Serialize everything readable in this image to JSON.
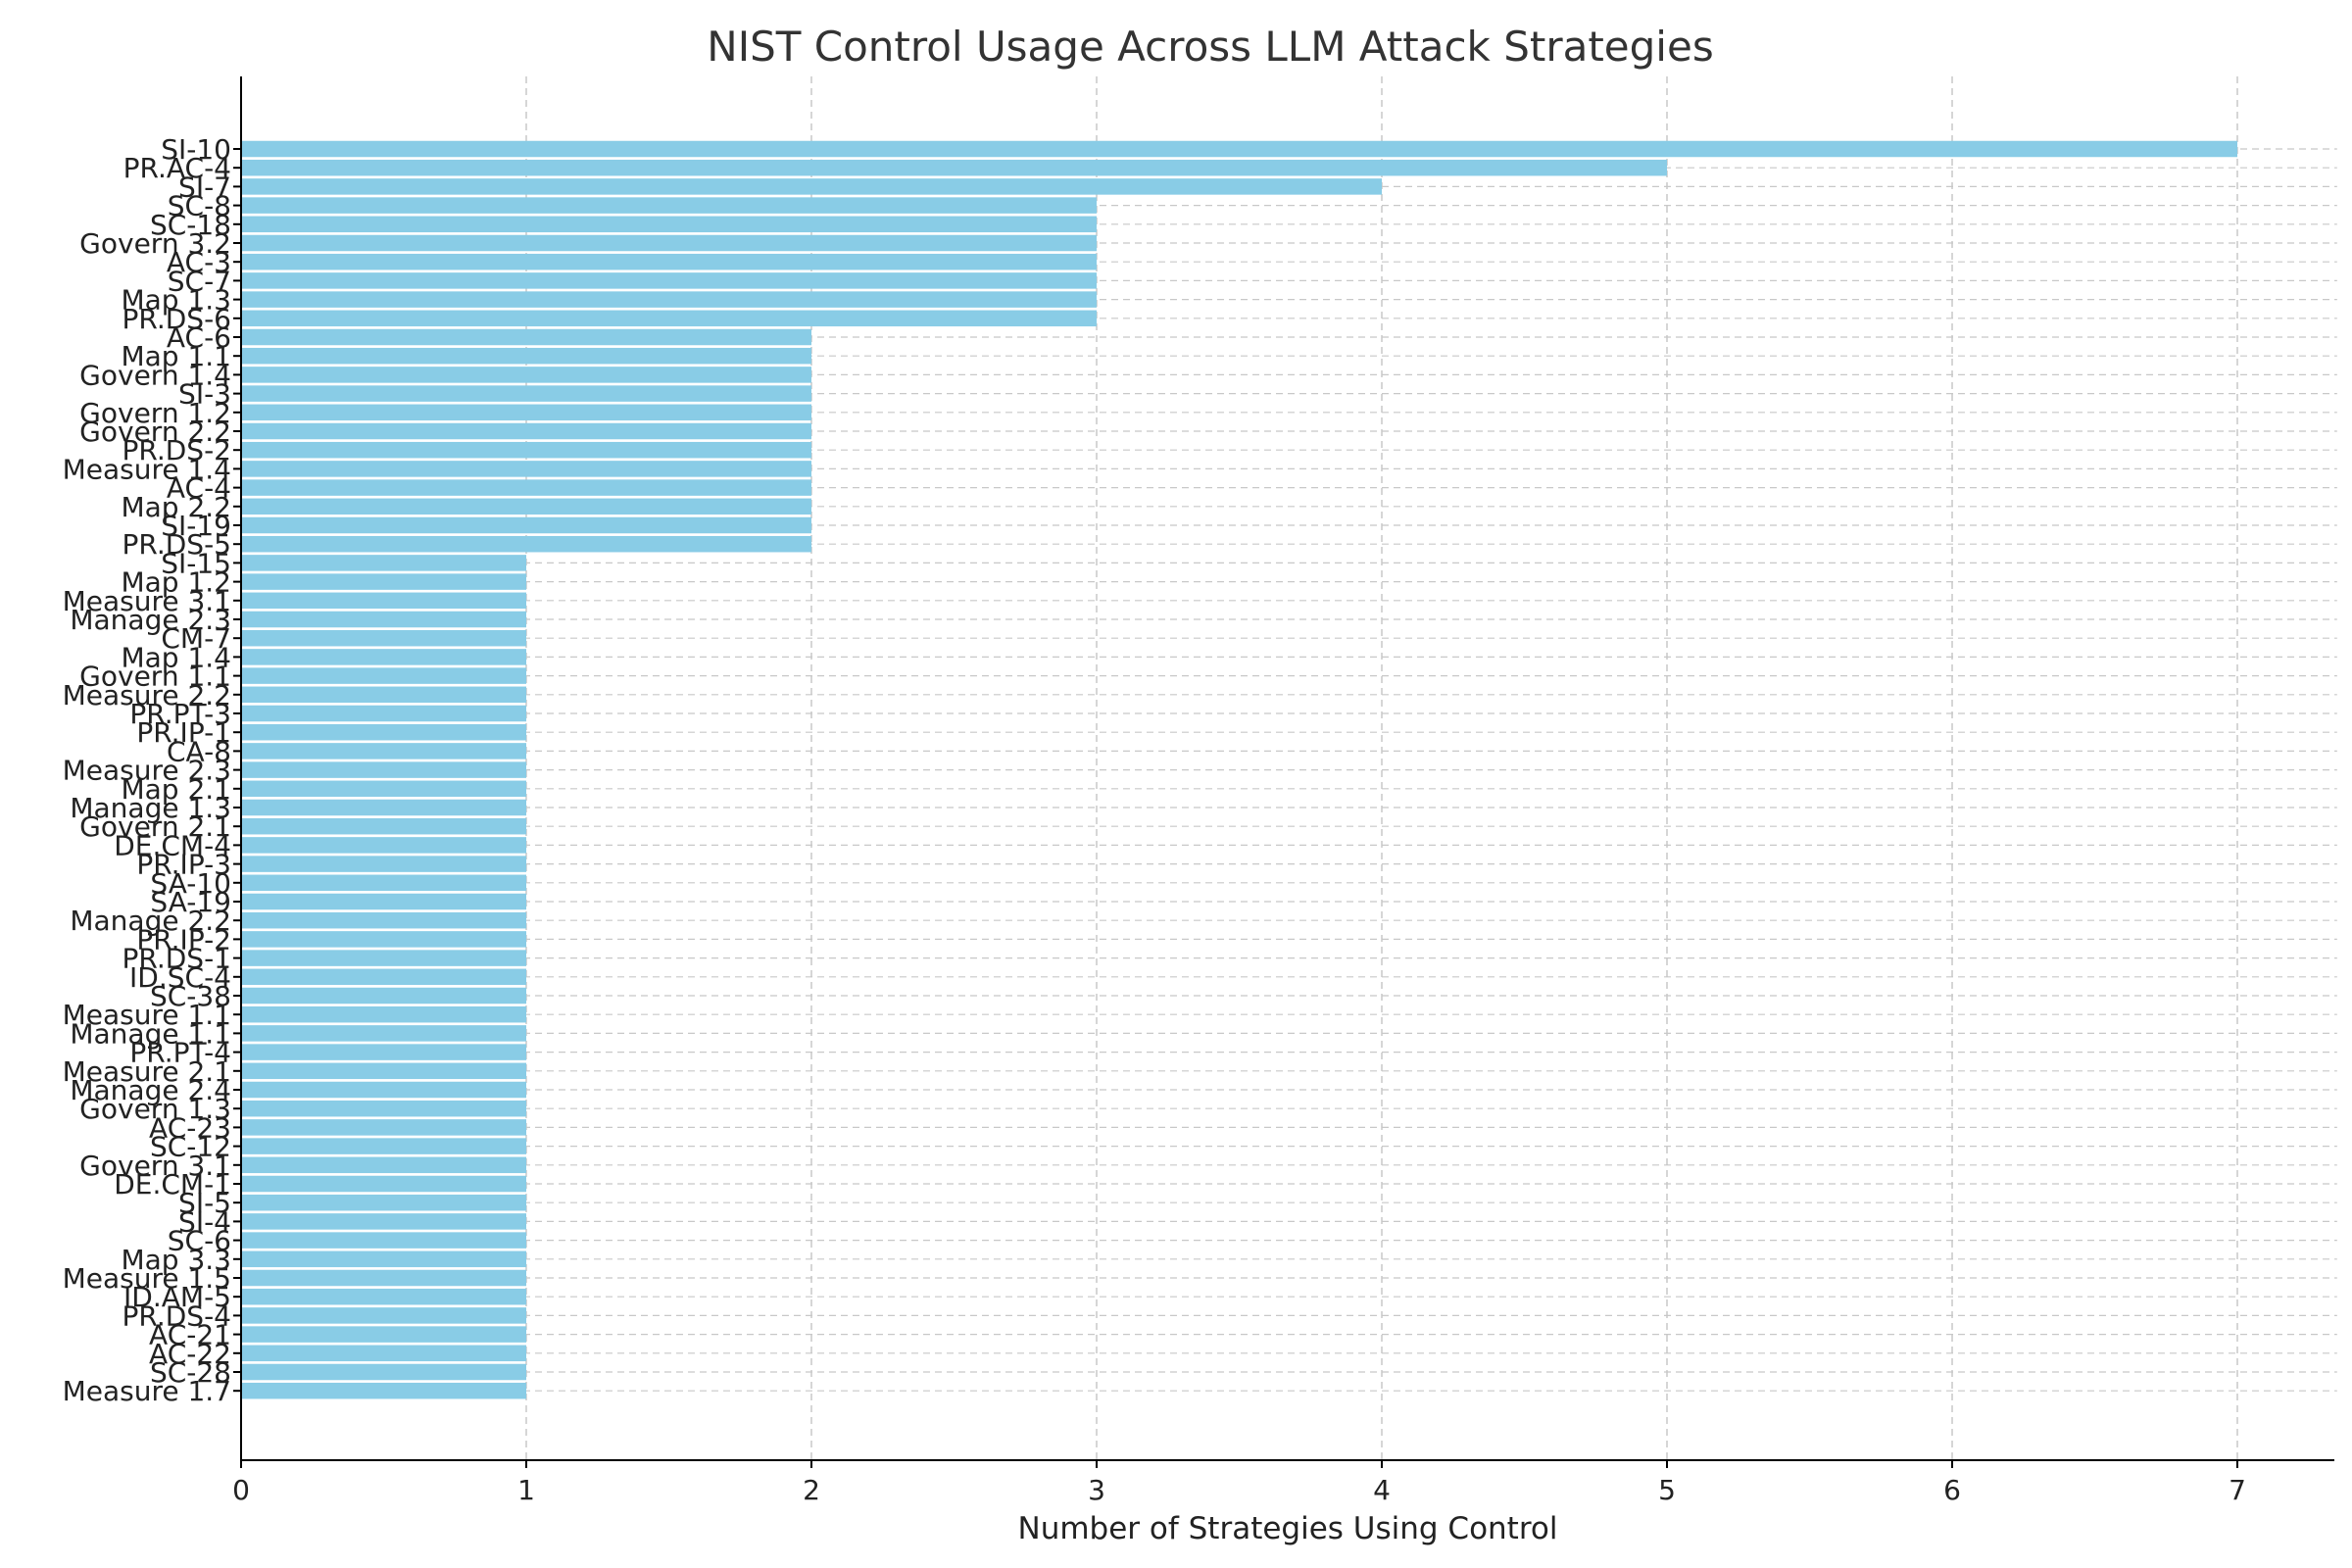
{
  "chart_data": {
    "type": "bar",
    "orientation": "horizontal",
    "title": "NIST Control Usage Across LLM Attack Strategies",
    "xlabel": "Number of Strategies Using Control",
    "ylabel": "",
    "xlim": [
      0,
      7.35
    ],
    "xticks": [
      0,
      1,
      2,
      3,
      4,
      5,
      6,
      7
    ],
    "grid": "dashed, both axes",
    "bar_color": "#89cce6",
    "categories": [
      "SI-10",
      "PR.AC-4",
      "SI-7",
      "SC-8",
      "SC-18",
      "Govern 3.2",
      "AC-3",
      "SC-7",
      "Map 1.3",
      "PR.DS-6",
      "AC-6",
      "Map 1.1",
      "Govern 1.4",
      "SI-3",
      "Govern 1.2",
      "Govern 2.2",
      "PR.DS-2",
      "Measure 1.4",
      "AC-4",
      "Map 2.2",
      "SI-19",
      "PR.DS-5",
      "SI-15",
      "Map 1.2",
      "Measure 3.1",
      "Manage 2.3",
      "CM-7",
      "Map 1.4",
      "Govern 1.1",
      "Measure 2.2",
      "PR.PT-3",
      "PR.IP-1",
      "CA-8",
      "Measure 2.3",
      "Map 2.1",
      "Manage 1.3",
      "Govern 2.1",
      "DE.CM-4",
      "PR.IP-3",
      "SA-10",
      "SA-19",
      "Manage 2.2",
      "PR.IP-2",
      "PR.DS-1",
      "ID.SC-4",
      "SC-38",
      "Measure 1.1",
      "Manage 1.1",
      "PR.PT-4",
      "Measure 2.1",
      "Manage 2.4",
      "Govern 1.3",
      "AC-23",
      "SC-12",
      "Govern 3.1",
      "DE.CM-1",
      "SI-5",
      "SI-4",
      "SC-6",
      "Map 3.3",
      "Measure 1.5",
      "ID.AM-5",
      "PR.DS-4",
      "AC-21",
      "AC-22",
      "SC-28",
      "Measure 1.7"
    ],
    "values": [
      7,
      5,
      4,
      3,
      3,
      3,
      3,
      3,
      3,
      3,
      2,
      2,
      2,
      2,
      2,
      2,
      2,
      2,
      2,
      2,
      2,
      2,
      1,
      1,
      1,
      1,
      1,
      1,
      1,
      1,
      1,
      1,
      1,
      1,
      1,
      1,
      1,
      1,
      1,
      1,
      1,
      1,
      1,
      1,
      1,
      1,
      1,
      1,
      1,
      1,
      1,
      1,
      1,
      1,
      1,
      1,
      1,
      1,
      1,
      1,
      1,
      1,
      1,
      1,
      1,
      1,
      1
    ]
  }
}
